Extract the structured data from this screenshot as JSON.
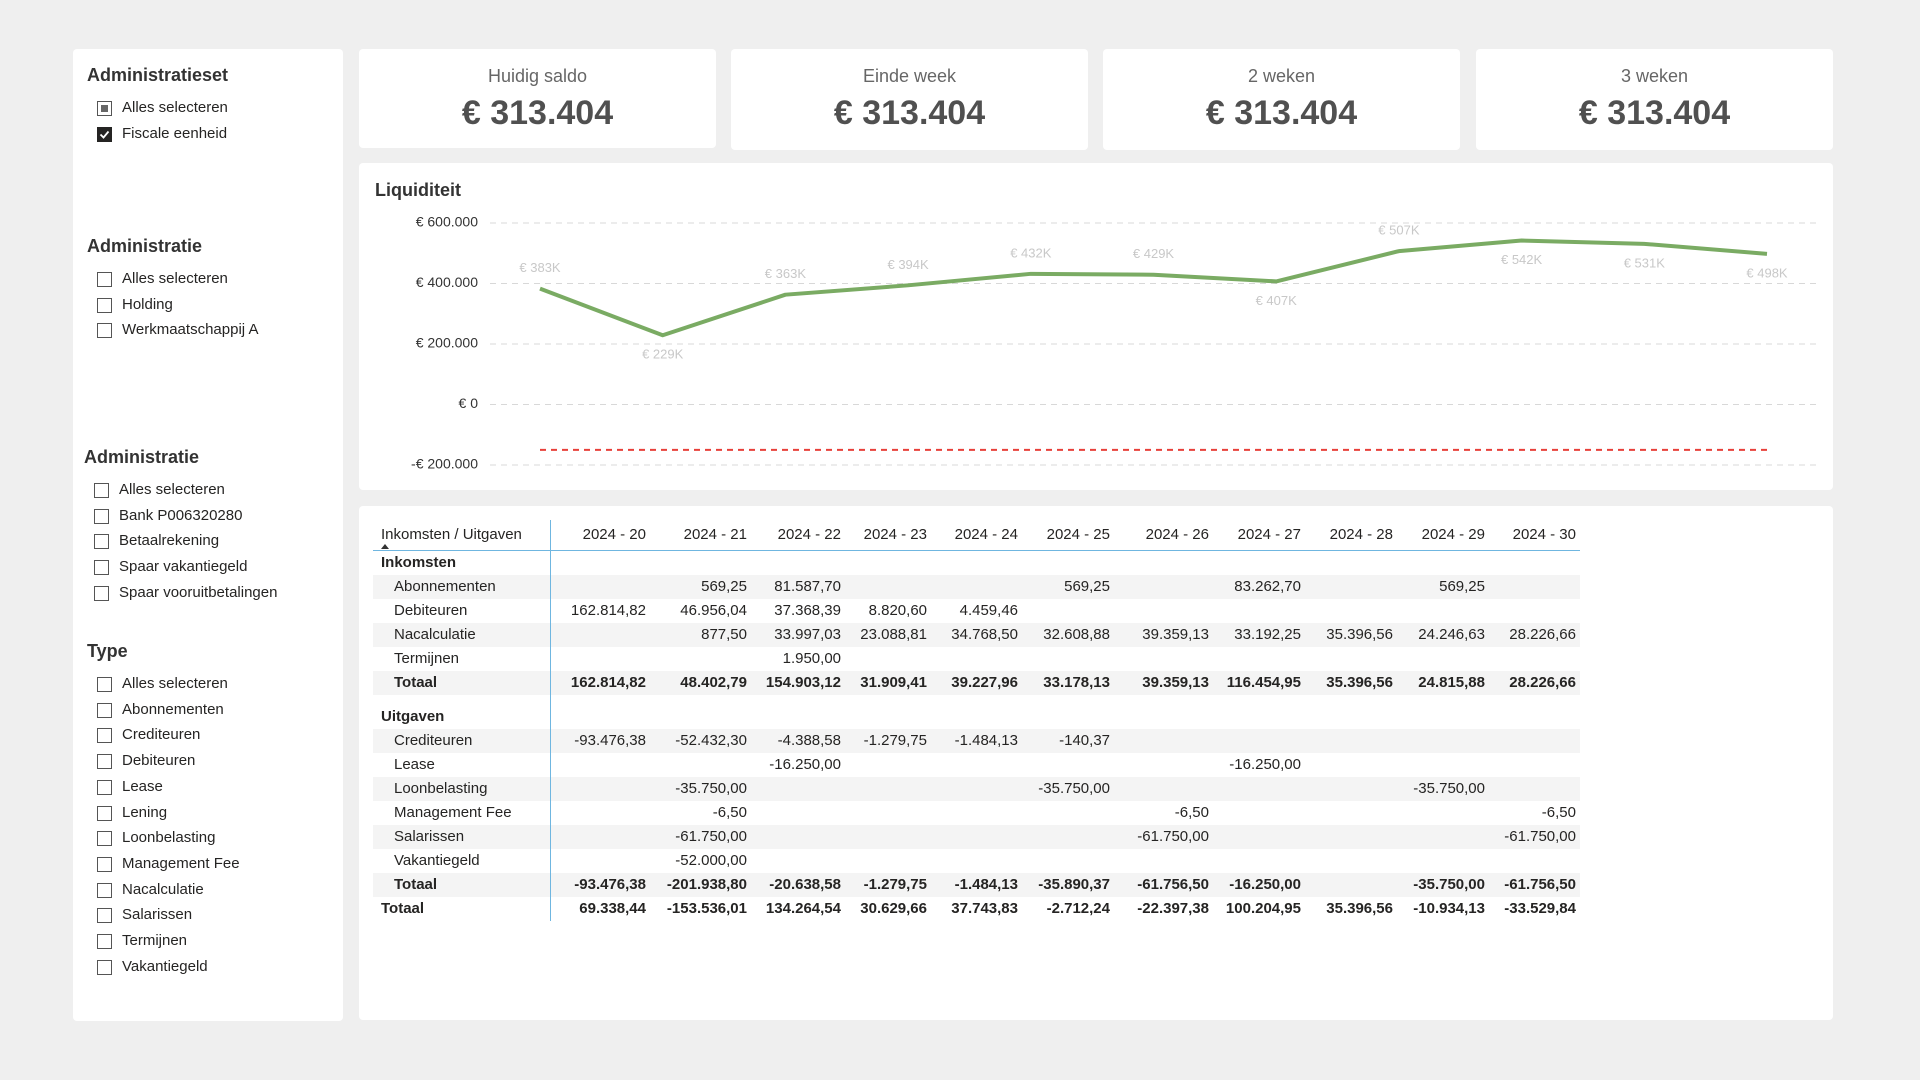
{
  "slicers": [
    {
      "title": "Administratieset",
      "items": [
        {
          "label": "Alles selecteren",
          "state": "partial"
        },
        {
          "label": "Fiscale eenheid",
          "state": "checked"
        }
      ]
    },
    {
      "title": "Administratie",
      "items": [
        {
          "label": "Alles selecteren",
          "state": "unchecked"
        },
        {
          "label": "Holding",
          "state": "unchecked"
        },
        {
          "label": "Werkmaatschappij A",
          "state": "unchecked"
        }
      ]
    },
    {
      "title": "Administratie",
      "items": [
        {
          "label": "Alles selecteren",
          "state": "unchecked"
        },
        {
          "label": "Bank P006320280",
          "state": "unchecked"
        },
        {
          "label": "Betaalrekening",
          "state": "unchecked"
        },
        {
          "label": "Spaar vakantiegeld",
          "state": "unchecked"
        },
        {
          "label": "Spaar vooruitbetalingen",
          "state": "unchecked"
        }
      ]
    },
    {
      "title": "Type",
      "items": [
        {
          "label": "Alles selecteren",
          "state": "unchecked"
        },
        {
          "label": "Abonnementen",
          "state": "unchecked"
        },
        {
          "label": "Crediteuren",
          "state": "unchecked"
        },
        {
          "label": "Debiteuren",
          "state": "unchecked"
        },
        {
          "label": "Lease",
          "state": "unchecked"
        },
        {
          "label": "Lening",
          "state": "unchecked"
        },
        {
          "label": "Loonbelasting",
          "state": "unchecked"
        },
        {
          "label": "Management Fee",
          "state": "unchecked"
        },
        {
          "label": "Nacalculatie",
          "state": "unchecked"
        },
        {
          "label": "Salarissen",
          "state": "unchecked"
        },
        {
          "label": "Termijnen",
          "state": "unchecked"
        },
        {
          "label": "Vakantiegeld",
          "state": "unchecked"
        }
      ]
    }
  ],
  "cards": [
    {
      "label": "Huidig saldo",
      "value": "€ 313.404"
    },
    {
      "label": "Einde week",
      "value": "€ 313.404"
    },
    {
      "label": "2 weken",
      "value": "€ 313.404"
    },
    {
      "label": "3 weken",
      "value": "€ 313.404"
    }
  ],
  "chart_data": {
    "type": "line",
    "title": "Liquiditeit",
    "values": [
      383000,
      229000,
      363000,
      394000,
      432000,
      429000,
      407000,
      507000,
      542000,
      531000,
      498000
    ],
    "value_labels": [
      "€ 383K",
      "€ 229K",
      "€ 363K",
      "€ 394K",
      "€ 432K",
      "€ 429K",
      "€ 407K",
      "€ 507K",
      "€ 542K",
      "€ 531K",
      "€ 498K"
    ],
    "color": "#7aab63",
    "ylim": [
      -200000,
      600000
    ],
    "yticks": [
      {
        "value": -200000,
        "label": "-€ 200.000"
      },
      {
        "value": 0,
        "label": "€ 0"
      },
      {
        "value": 200000,
        "label": "€ 200.000"
      },
      {
        "value": 400000,
        "label": "€ 400.000"
      },
      {
        "value": 600000,
        "label": "€ 600.000"
      }
    ],
    "grid": true,
    "reference_line": {
      "value": -150000,
      "color": "#e8403a"
    }
  },
  "table": {
    "header": [
      "Inkomsten / Uitgaven",
      "2024 - 20",
      "2024 - 21",
      "2024 - 22",
      "2024 - 23",
      "2024 - 24",
      "2024 - 25",
      "2024 - 26",
      "2024 - 27",
      "2024 - 28",
      "2024 - 29",
      "2024 - 30"
    ],
    "groups": [
      {
        "title": "Inkomsten",
        "rows": [
          {
            "label": "Abonnementen",
            "cells": [
              null,
              "569,25",
              "81.587,70",
              null,
              null,
              "569,25",
              null,
              "83.262,70",
              null,
              "569,25",
              null
            ]
          },
          {
            "label": "Debiteuren",
            "cells": [
              "162.814,82",
              "46.956,04",
              "37.368,39",
              "8.820,60",
              "4.459,46",
              null,
              null,
              null,
              null,
              null,
              null
            ]
          },
          {
            "label": "Nacalculatie",
            "cells": [
              null,
              "877,50",
              "33.997,03",
              "23.088,81",
              "34.768,50",
              "32.608,88",
              "39.359,13",
              "33.192,25",
              "35.396,56",
              "24.246,63",
              "28.226,66"
            ]
          },
          {
            "label": "Termijnen",
            "cells": [
              null,
              null,
              "1.950,00",
              null,
              null,
              null,
              null,
              null,
              null,
              null,
              null
            ]
          }
        ],
        "total": {
          "label": "Totaal",
          "cells": [
            "162.814,82",
            "48.402,79",
            "154.903,12",
            "31.909,41",
            "39.227,96",
            "33.178,13",
            "39.359,13",
            "116.454,95",
            "35.396,56",
            "24.815,88",
            "28.226,66"
          ]
        }
      },
      {
        "title": "Uitgaven",
        "rows": [
          {
            "label": "Crediteuren",
            "cells": [
              "-93.476,38",
              "-52.432,30",
              "-4.388,58",
              "-1.279,75",
              "-1.484,13",
              "-140,37",
              null,
              null,
              null,
              null,
              null
            ]
          },
          {
            "label": "Lease",
            "cells": [
              null,
              null,
              "-16.250,00",
              null,
              null,
              null,
              null,
              "-16.250,00",
              null,
              null,
              null
            ]
          },
          {
            "label": "Loonbelasting",
            "cells": [
              null,
              "-35.750,00",
              null,
              null,
              null,
              "-35.750,00",
              null,
              null,
              null,
              "-35.750,00",
              null
            ]
          },
          {
            "label": "Management Fee",
            "cells": [
              null,
              "-6,50",
              null,
              null,
              null,
              null,
              "-6,50",
              null,
              null,
              null,
              "-6,50"
            ]
          },
          {
            "label": "Salarissen",
            "cells": [
              null,
              "-61.750,00",
              null,
              null,
              null,
              null,
              "-61.750,00",
              null,
              null,
              null,
              "-61.750,00"
            ]
          },
          {
            "label": "Vakantiegeld",
            "cells": [
              null,
              "-52.000,00",
              null,
              null,
              null,
              null,
              null,
              null,
              null,
              null,
              null
            ]
          }
        ],
        "total": {
          "label": "Totaal",
          "cells": [
            "-93.476,38",
            "-201.938,80",
            "-20.638,58",
            "-1.279,75",
            "-1.484,13",
            "-35.890,37",
            "-61.756,50",
            "-16.250,00",
            null,
            "-35.750,00",
            "-61.756,50"
          ]
        }
      }
    ],
    "grand_total": {
      "label": "Totaal",
      "cells": [
        "69.338,44",
        "-153.536,01",
        "134.264,54",
        "30.629,66",
        "37.743,83",
        "-2.712,24",
        "-22.397,38",
        "100.204,95",
        "35.396,56",
        "-10.934,13",
        "-33.529,84"
      ]
    }
  }
}
